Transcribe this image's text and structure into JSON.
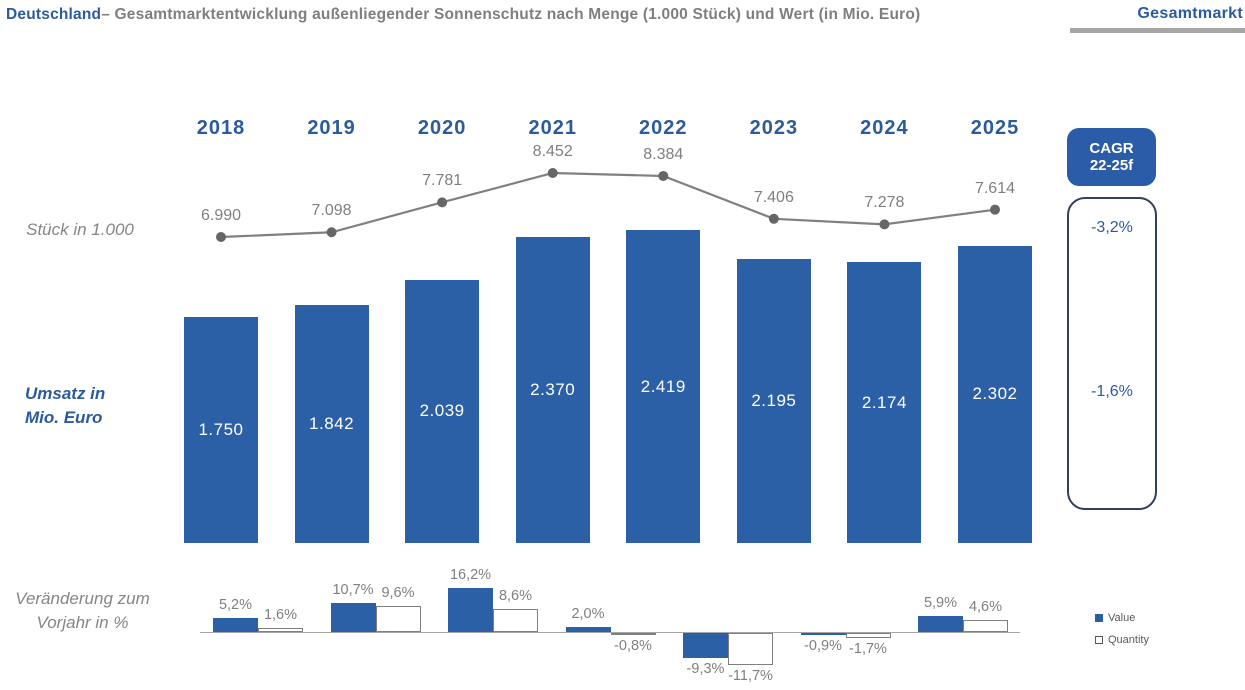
{
  "header": {
    "title_country": "Deutschland",
    "title_rest": "– Gesamtmarktentwicklung außenliegender Sonnenschutz nach Menge (1.000 Stück) und Wert (in Mio. Euro)",
    "tab_label": "Gesamtmarkt"
  },
  "axis_labels": {
    "line_label": "Stück in 1.000",
    "bars_line1": "Umsatz in",
    "bars_line2": "Mio. Euro",
    "mini_line1": "Veränderung zum",
    "mini_line2": "Vorjahr in %"
  },
  "cagr": {
    "title_line1": "CAGR",
    "title_line2": "22-25f",
    "quantity_cagr": "-3,2%",
    "value_cagr": "-1,6%"
  },
  "legend": {
    "value_label": "Value",
    "quantity_label": "Quantity"
  },
  "colors": {
    "brand_text_blue": "#2b5a9f",
    "bar_blue": "#2b5fa6",
    "cagr_badge_blue": "#2b5ca8",
    "gray_text": "#7f7f7f",
    "line_gray": "#808080",
    "dot_gray": "#666666",
    "underline_gray": "#a6a6a6",
    "values_box_border": "#32405f"
  },
  "chart_data": {
    "type": "combo",
    "title": "Deutschland – Gesamtmarktentwicklung außenliegender Sonnenschutz nach Menge (1.000 Stück) und Wert (in Mio. Euro)",
    "years": [
      "2018",
      "2019",
      "2020",
      "2021",
      "2022",
      "2023",
      "2024",
      "2025"
    ],
    "line_series": {
      "type": "line",
      "name": "Stück in 1.000",
      "legend_name": "Quantity",
      "values": [
        6990,
        7098,
        7781,
        8452,
        8384,
        7406,
        7278,
        7614
      ],
      "labels": [
        "6.990",
        "7.098",
        "7.781",
        "8.452",
        "8.384",
        "7.406",
        "7.278",
        "7.614"
      ]
    },
    "bar_series": {
      "type": "bar",
      "name": "Umsatz in Mio. Euro",
      "legend_name": "Value",
      "values": [
        1750,
        1842,
        2039,
        2370,
        2419,
        2195,
        2174,
        2302
      ],
      "labels": [
        "1.750",
        "1.842",
        "2.039",
        "2.370",
        "2.419",
        "2.195",
        "2.174",
        "2.302"
      ]
    },
    "change_chart": {
      "type": "bar",
      "name": "Veränderung zum Vorjahr in %",
      "categories": [
        "2019",
        "2020",
        "2021",
        "2022",
        "2023",
        "2024",
        "2025"
      ],
      "series": [
        {
          "name": "Value",
          "filled": true,
          "values": [
            5.2,
            10.7,
            16.2,
            2.0,
            -9.3,
            -0.9,
            5.9
          ],
          "labels": [
            "5,2%",
            "10,7%",
            "16,2%",
            "2,0%",
            "-9,3%",
            "-0,9%",
            "5,9%"
          ]
        },
        {
          "name": "Quantity",
          "filled": false,
          "values": [
            1.6,
            9.6,
            8.6,
            -0.8,
            -11.7,
            -1.7,
            4.6
          ],
          "labels": [
            "1,6%",
            "9,6%",
            "8,6%",
            "-0,8%",
            "-11,7%",
            "-1,7%",
            "4,6%"
          ]
        }
      ]
    }
  }
}
